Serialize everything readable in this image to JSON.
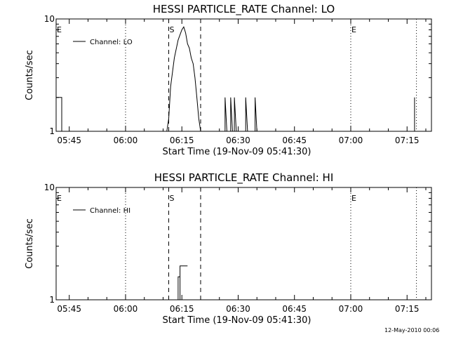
{
  "footer_date": "12-May-2010 00:06",
  "chart_data": [
    {
      "type": "line",
      "title": "HESSI PARTICLE_RATE Channel: LO",
      "xlabel": "Start Time (19-Nov-09 05:41:30)",
      "ylabel": "Counts/sec",
      "y_scale": "log",
      "ylim": [
        1,
        10
      ],
      "y_tick_labels": [
        "1",
        "10"
      ],
      "xlim": [
        "05:41:30",
        "07:21:30"
      ],
      "x_tick_labels": [
        "05:45",
        "06:00",
        "06:15",
        "06:30",
        "06:45",
        "07:00",
        "07:15"
      ],
      "legend": {
        "position": "top-left",
        "entries": [
          "Channel: LO"
        ]
      },
      "series": [
        {
          "name": "Channel: LO",
          "points": [
            [
              "05:41:30",
              2
            ],
            [
              "05:43:00",
              2
            ],
            [
              "05:43:00",
              1
            ],
            [
              "06:11:00",
              1
            ],
            [
              "06:11:30",
              1.3
            ],
            [
              "06:12:00",
              2.5
            ],
            [
              "06:13:00",
              4.5
            ],
            [
              "06:14:00",
              6.5
            ],
            [
              "06:15:00",
              8
            ],
            [
              "06:15:30",
              8.5
            ],
            [
              "06:16:00",
              7.5
            ],
            [
              "06:16:30",
              6
            ],
            [
              "06:17:00",
              5.5
            ],
            [
              "06:17:30",
              4.5
            ],
            [
              "06:18:00",
              4
            ],
            [
              "06:18:30",
              3
            ],
            [
              "06:19:00",
              2
            ],
            [
              "06:19:30",
              1.3
            ],
            [
              "06:20:00",
              1
            ],
            [
              "06:26:30",
              1
            ],
            [
              "06:26:30",
              2
            ],
            [
              "06:27:00",
              1
            ],
            [
              "06:28:00",
              1
            ],
            [
              "06:28:00",
              2
            ],
            [
              "06:28:30",
              1
            ],
            [
              "06:29:00",
              1
            ],
            [
              "06:29:00",
              2
            ],
            [
              "06:29:30",
              1
            ],
            [
              "06:32:00",
              1
            ],
            [
              "06:32:00",
              2
            ],
            [
              "06:32:30",
              1
            ],
            [
              "06:34:30",
              1
            ],
            [
              "06:34:30",
              2
            ],
            [
              "06:35:00",
              1
            ],
            [
              "07:17:00",
              1
            ],
            [
              "07:17:00",
              2
            ]
          ]
        }
      ],
      "markers": [
        {
          "label": "E",
          "time": "05:41:30",
          "style": "dotted"
        },
        {
          "label": "",
          "time": "06:00:00",
          "style": "dotted"
        },
        {
          "label": "S",
          "time": "06:11:30",
          "style": "dashed"
        },
        {
          "label": "",
          "time": "06:20:00",
          "style": "dashed"
        },
        {
          "label": "E",
          "time": "07:00:00",
          "style": "dotted"
        },
        {
          "label": "",
          "time": "07:17:30",
          "style": "dotted"
        }
      ]
    },
    {
      "type": "line",
      "title": "HESSI PARTICLE_RATE Channel: HI",
      "xlabel": "Start Time (19-Nov-09 05:41:30)",
      "ylabel": "Counts/sec",
      "y_scale": "log",
      "ylim": [
        1,
        10
      ],
      "y_tick_labels": [
        "1",
        "10"
      ],
      "xlim": [
        "05:41:30",
        "07:21:30"
      ],
      "x_tick_labels": [
        "05:45",
        "06:00",
        "06:15",
        "06:30",
        "06:45",
        "07:00",
        "07:15"
      ],
      "legend": {
        "position": "top-left",
        "entries": [
          "Channel: HI"
        ]
      },
      "series": [
        {
          "name": "Channel: HI",
          "points": [
            [
              "06:14:00",
              1
            ],
            [
              "06:14:00",
              1.6
            ],
            [
              "06:14:30",
              1.6
            ],
            [
              "06:14:30",
              1
            ],
            [
              "06:14:30",
              2
            ],
            [
              "06:16:30",
              2
            ]
          ]
        }
      ],
      "markers": [
        {
          "label": "E",
          "time": "05:41:30",
          "style": "dotted"
        },
        {
          "label": "",
          "time": "06:00:00",
          "style": "dotted"
        },
        {
          "label": "S",
          "time": "06:11:30",
          "style": "dashed"
        },
        {
          "label": "",
          "time": "06:20:00",
          "style": "dashed"
        },
        {
          "label": "E",
          "time": "07:00:00",
          "style": "dotted"
        },
        {
          "label": "",
          "time": "07:17:30",
          "style": "dotted"
        }
      ]
    }
  ]
}
